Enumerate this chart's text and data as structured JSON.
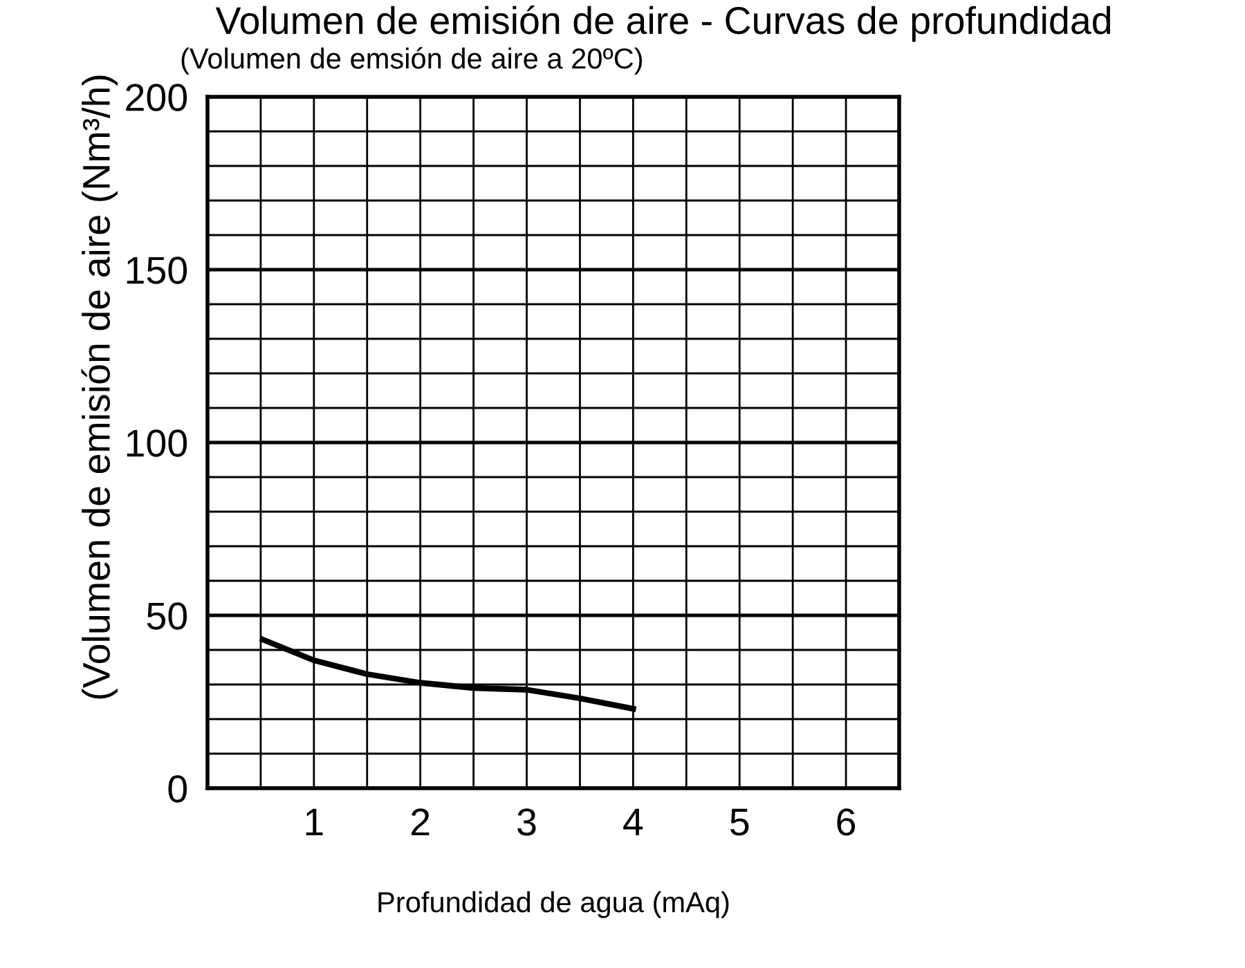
{
  "chart_data": {
    "type": "line",
    "title": "Volumen de emisión de aire - Curvas de profundidad",
    "subtitle": "(Volumen de emsión de aire a 20ºC)",
    "xlabel": "Profundidad de agua (mAq)",
    "ylabel": "(Volumen de emisión de aire (Nm³/h)",
    "x": [
      0.52,
      1,
      1.5,
      2,
      2.5,
      3,
      3.5,
      4
    ],
    "series": [
      {
        "color": "#000000",
        "values": [
          43,
          37,
          33,
          30.5,
          29,
          28.5,
          26,
          23
        ]
      }
    ],
    "xlim": [
      0,
      6.5
    ],
    "xticks": [
      {
        "value": 0.5,
        "label": null
      },
      1,
      {
        "value": 1.5,
        "label": null
      },
      2,
      {
        "value": 2.5,
        "label": null
      },
      3,
      {
        "value": 3.5,
        "label": null
      },
      4,
      {
        "value": 4.5,
        "label": null
      },
      5,
      {
        "value": 5.5,
        "label": null
      },
      6
    ],
    "ylim": [
      0,
      200
    ],
    "yticks": [
      0,
      {
        "value": 10,
        "label": null
      },
      {
        "value": 20,
        "label": null
      },
      {
        "value": 30,
        "label": null
      },
      {
        "value": 40,
        "label": null
      },
      50,
      {
        "value": 60,
        "label": null
      },
      {
        "value": 70,
        "label": null
      },
      {
        "value": 80,
        "label": null
      },
      {
        "value": 90,
        "label": null
      },
      100,
      {
        "value": 110,
        "label": null
      },
      {
        "value": 120,
        "label": null
      },
      {
        "value": 130,
        "label": null
      },
      {
        "value": 140,
        "label": null
      },
      150,
      {
        "value": 160,
        "label": null
      },
      {
        "value": 170,
        "label": null
      },
      {
        "value": 180,
        "label": null
      },
      {
        "value": 190,
        "label": null
      },
      200
    ],
    "grid": true,
    "line_style": "solid",
    "marker": "none"
  }
}
